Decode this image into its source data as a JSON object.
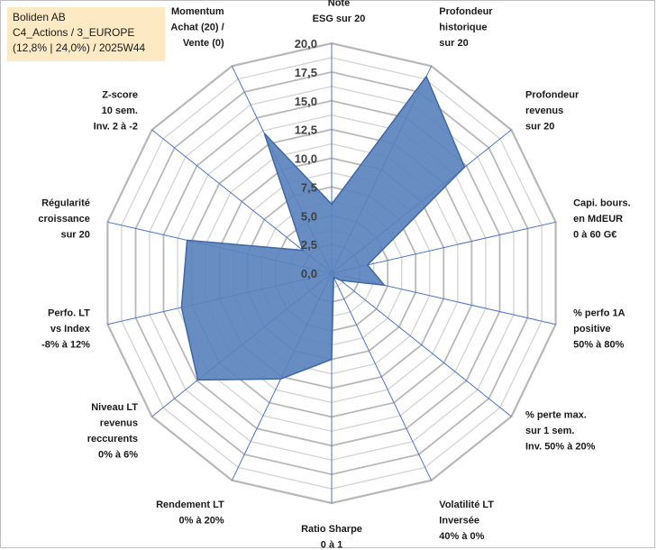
{
  "info": {
    "company": "Boliden AB",
    "category": "C4_Actions / 3_EUROPE",
    "performance": "(12,8% | 24,0%) / 2025W44"
  },
  "colors": {
    "fill": "#5b83be",
    "stroke": "#3f67a3",
    "axis": "#4a74c9",
    "grid": "#c0c0c0",
    "infoBg": "#fde9c4"
  },
  "chart_data": {
    "type": "radar",
    "title": "",
    "rmin": 0,
    "rmax": 20,
    "ticks": [
      "0,0",
      "2,5",
      "5,0",
      "7,5",
      "10,0",
      "12,5",
      "15,0",
      "17,5",
      "20,0"
    ],
    "axes": [
      {
        "label": [
          "Note",
          "ESG sur 20"
        ],
        "value": 6.0
      },
      {
        "label": [
          "Profondeur",
          "historique",
          "sur 20"
        ],
        "value": 19.0
      },
      {
        "label": [
          "Profondeur",
          "revenus",
          "sur 20"
        ],
        "value": 14.8
      },
      {
        "label": [
          "Capi. bours.",
          "en MdEUR",
          "0 à 60 G€"
        ],
        "value": 3.2
      },
      {
        "label": [
          "% perfo 1A",
          "positive",
          "50% à 80%"
        ],
        "value": 4.7
      },
      {
        "label": [
          "% perte max.",
          "sur 1 sem.",
          "Inv. 50% à 20%"
        ],
        "value": 1.0
      },
      {
        "label": [
          "Volatilité LT",
          "Inversée",
          "40% à 0%"
        ],
        "value": 0.4
      },
      {
        "label": [
          "Ratio Sharpe",
          "0 à 1"
        ],
        "value": 7.5
      },
      {
        "label": [
          "Rendement LT",
          "0% à 20%"
        ],
        "value": 10.2
      },
      {
        "label": [
          "Niveau LT",
          "revenus",
          "reccurents",
          "0% à 6%"
        ],
        "value": 14.9
      },
      {
        "label": [
          "Perfo. LT",
          "vs Index",
          "-8% à 12%"
        ],
        "value": 13.4
      },
      {
        "label": [
          "Régularité",
          "croissance",
          "sur 20"
        ],
        "value": 12.9
      },
      {
        "label": [
          "Z-score",
          "10 sem.",
          "Inv. 2 à -2"
        ],
        "value": 3.2
      },
      {
        "label": [
          "Momentum",
          "Achat (20) /",
          "Vente (0)"
        ],
        "value": 13.5
      }
    ]
  }
}
